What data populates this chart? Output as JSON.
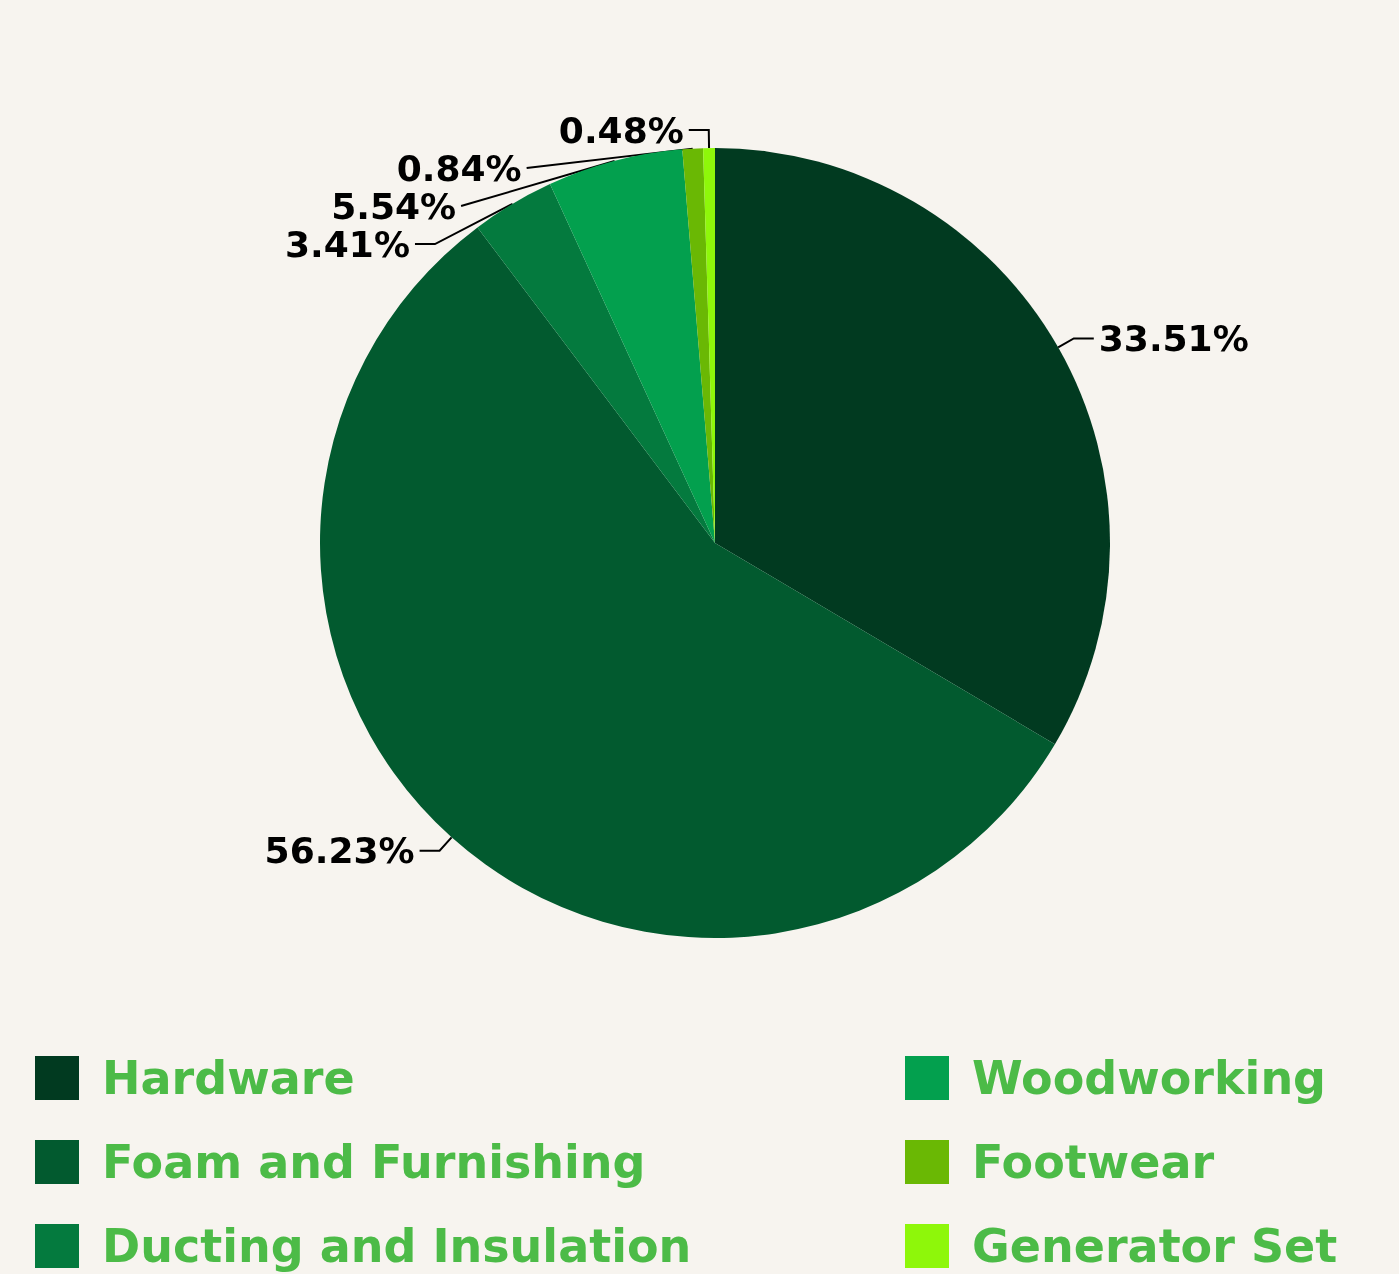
{
  "chart_data": {
    "type": "pie",
    "categories": [
      "Hardware",
      "Foam and Furnishing",
      "Ducting and Insulation",
      "Woodworking",
      "Footwear",
      "Generator Set"
    ],
    "values": [
      33.51,
      56.23,
      3.41,
      5.54,
      0.84,
      0.48
    ],
    "colors": [
      "#013a20",
      "#025a2f",
      "#047a3e",
      "#03a04e",
      "#6ab804",
      "#8ef70a"
    ],
    "value_labels": [
      "33.51%",
      "56.23%",
      "3.41%",
      "5.54%",
      "0.84%",
      "0.48%"
    ],
    "legend": "bottom"
  }
}
